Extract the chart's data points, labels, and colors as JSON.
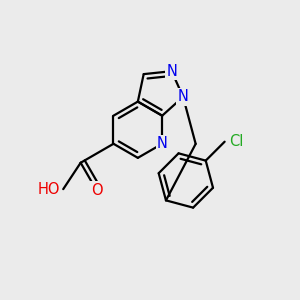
{
  "background_color": "#ebebeb",
  "atom_colors": {
    "C": "#000000",
    "N": "#0000ee",
    "O": "#ee0000",
    "H": "#888888",
    "Cl": "#22aa22"
  },
  "bond_color": "#000000",
  "bond_width": 1.6,
  "font_size_atom": 10.5,
  "xlim": [
    -2.2,
    2.2
  ],
  "ylim": [
    -2.2,
    2.2
  ]
}
